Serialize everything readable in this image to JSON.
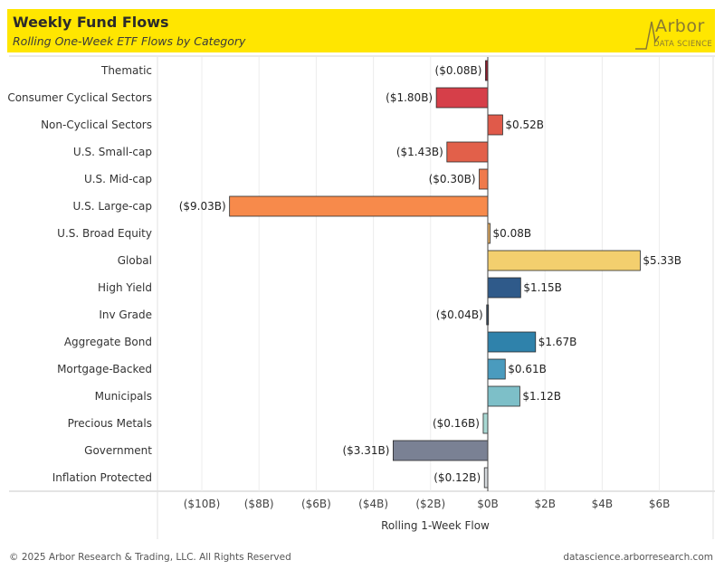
{
  "header": {
    "title": "Weekly Fund Flows",
    "subtitle": "Rolling One-Week ETF Flows by Category",
    "logo_word": "Arbor",
    "logo_sub": "DATA SCIENCE",
    "background_color": "#ffe600"
  },
  "footer": {
    "copyright": "© 2025 Arbor Research & Trading, LLC. All Rights Reserved",
    "site": "datascience.arborresearch.com"
  },
  "chart_data": {
    "type": "bar",
    "orientation": "horizontal",
    "xlabel": "Rolling 1-Week Flow",
    "xlim": [
      -11,
      7
    ],
    "grid": true,
    "x_ticks": [
      -10,
      -8,
      -6,
      -4,
      -2,
      0,
      2,
      4,
      6
    ],
    "x_tick_labels": [
      "($10B)",
      "($8B)",
      "($6B)",
      "($4B)",
      "($2B)",
      "$0B",
      "$2B",
      "$4B",
      "$6B"
    ],
    "categories": [
      "Thematic",
      "Consumer Cyclical Sectors",
      "Non-Cyclical Sectors",
      "U.S. Small-cap",
      "U.S. Mid-cap",
      "U.S. Large-cap",
      "U.S. Broad Equity",
      "Global",
      "High Yield",
      "Inv Grade",
      "Aggregate Bond",
      "Mortgage-Backed",
      "Municipals",
      "Precious Metals",
      "Government",
      "Inflation Protected"
    ],
    "values": [
      -0.08,
      -1.8,
      0.52,
      -1.43,
      -0.3,
      -9.03,
      0.08,
      5.33,
      1.15,
      -0.04,
      1.67,
      0.61,
      1.12,
      -0.16,
      -3.31,
      -0.12
    ],
    "value_labels": [
      "($0.08B)",
      "($1.80B)",
      "$0.52B",
      "($1.43B)",
      "($0.30B)",
      "($9.03B)",
      "$0.08B",
      "$5.33B",
      "$1.15B",
      "($0.04B)",
      "$1.67B",
      "$0.61B",
      "$1.12B",
      "($0.16B)",
      "($3.31B)",
      "($0.12B)"
    ],
    "colors": [
      "#8b1c2c",
      "#d63f49",
      "#e05a4a",
      "#e2604a",
      "#ef7a4c",
      "#f78a4b",
      "#f3b866",
      "#f3cf6e",
      "#2f5a8a",
      "#2b5a8a",
      "#2f82ab",
      "#4a9bbe",
      "#7dbfc8",
      "#a8d8d3",
      "#7a8194",
      "#d4d8dc"
    ]
  }
}
